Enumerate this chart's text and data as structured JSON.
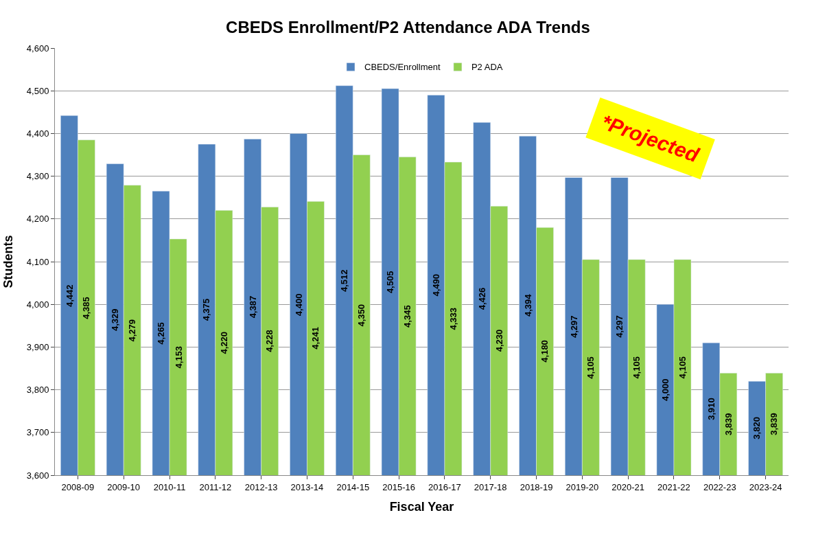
{
  "chart_data": {
    "type": "bar",
    "title": "CBEDS Enrollment/P2 Attendance ADA Trends",
    "xlabel": "Fiscal Year",
    "ylabel": "Students",
    "categories": [
      "2008-09",
      "2009-10",
      "2010-11",
      "2011-12",
      "2012-13",
      "2013-14",
      "2014-15",
      "2015-16",
      "2016-17",
      "2017-18",
      "2018-19",
      "2019-20",
      "2020-21",
      "2021-22",
      "2022-23",
      "2023-24"
    ],
    "series": [
      {
        "name": "CBEDS/Enrollment",
        "color": "#4f81bd",
        "values": [
          4442,
          4329,
          4265,
          4375,
          4387,
          4400,
          4512,
          4505,
          4490,
          4426,
          4394,
          4297,
          4297,
          4000,
          3910,
          3820
        ],
        "value_labels": [
          "4,442",
          "4,329",
          "4,265",
          "4,375",
          "4,387",
          "4,400",
          "4,512",
          "4,505",
          "4,490",
          "4,426",
          "4,394",
          "4,297",
          "4,297",
          "4,000",
          "3,910",
          "3,820"
        ]
      },
      {
        "name": "P2 ADA",
        "color": "#92d050",
        "values": [
          4385,
          4279,
          4153,
          4220,
          4228,
          4241,
          4350,
          4345,
          4333,
          4230,
          4180,
          4105,
          4105,
          4105,
          3839,
          3839
        ],
        "value_labels": [
          "4,385",
          "4,279",
          "4,153",
          "4,220",
          "4,228",
          "4,241",
          "4,350",
          "4,345",
          "4,333",
          "4,230",
          "4,180",
          "4,105",
          "4,105",
          "4,105",
          "3,839",
          "3,839"
        ]
      }
    ],
    "ylim": [
      3600,
      4600
    ],
    "yticks": [
      {
        "value": 3600,
        "label": "3,600"
      },
      {
        "value": 3700,
        "label": "3,700"
      },
      {
        "value": 3800,
        "label": "3,800"
      },
      {
        "value": 3900,
        "label": "3,900"
      },
      {
        "value": 4000,
        "label": "4,000"
      },
      {
        "value": 4100,
        "label": "4,100"
      },
      {
        "value": 4200,
        "label": "4,200"
      },
      {
        "value": 4300,
        "label": "4,300"
      },
      {
        "value": 4400,
        "label": "4,400"
      },
      {
        "value": 4500,
        "label": "4,500"
      },
      {
        "value": 4600,
        "label": "4,600"
      }
    ],
    "grid": "y",
    "legend": "top",
    "annotations": [
      "*Projected"
    ]
  }
}
